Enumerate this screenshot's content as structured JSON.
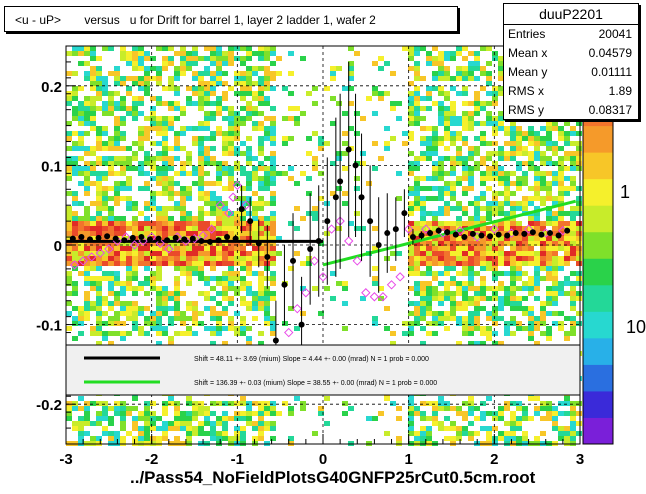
{
  "header": {
    "title": "<u - uP>       versus   u for Drift for barrel 1, layer 2 ladder 1, wafer 2"
  },
  "stats": {
    "name": "duuP2201",
    "rows": [
      {
        "label": "Entries",
        "value": "20041"
      },
      {
        "label": "Mean x",
        "value": "0.04579"
      },
      {
        "label": "Mean y",
        "value": "0.01111"
      },
      {
        "label": "RMS x",
        "value": "1.89"
      },
      {
        "label": "RMS y",
        "value": "0.08317"
      }
    ]
  },
  "footer": {
    "file": "../Pass54_NoFieldPlotsG40GNFP25rCut0.5cm.root"
  },
  "colorbar": {
    "labels": [
      "1",
      "10"
    ],
    "colors": [
      "#7a1fd9",
      "#3a2ad9",
      "#2a6fe0",
      "#28b0e8",
      "#27d8d0",
      "#23d898",
      "#2ad24a",
      "#7fe02a",
      "#c8ec2a",
      "#f5f02c",
      "#f7c628",
      "#f59a2a",
      "#f2742c",
      "#ea4a2a",
      "#e02a26"
    ]
  },
  "legend": {
    "entries": [
      {
        "color": "#000000",
        "text": "Shift =    48.11 +- 3.69 (mium) Slope =    4.44 +- 0.00 (mrad)  N = 1 prob = 0.000"
      },
      {
        "color": "#22dd22",
        "text": "Shift =   136.39 +- 0.03 (mium) Slope =    38.55 +- 0.00 (mrad)  N = 1 prob = 0.000"
      }
    ]
  },
  "chart_data": {
    "type": "heatmap",
    "title": "<u - uP>       versus   u for Drift for barrel 1, layer 2 ladder 1, wafer 2",
    "xlabel": "../Pass54_NoFieldPlotsG40GNFP25rCut0.5cm.root",
    "ylabel": "",
    "xlim": [
      -3,
      3
    ],
    "ylim": [
      -0.25,
      0.25
    ],
    "xticks": [
      -3,
      -2,
      -1,
      0,
      1,
      2,
      3
    ],
    "yticks": [
      -0.2,
      -0.1,
      0,
      0.1,
      0.2
    ],
    "ytick_labels": [
      "-0.2",
      "-0.1",
      "0",
      "0.1",
      "0.2"
    ],
    "grid": true,
    "series": [
      {
        "name": "profile",
        "marker": "filled-circle",
        "color": "#000000",
        "x": [
          -2.92,
          -2.82,
          -2.72,
          -2.62,
          -2.52,
          -2.42,
          -2.32,
          -2.22,
          -2.12,
          -2.02,
          -1.92,
          -1.82,
          -1.72,
          -1.62,
          -1.52,
          -1.42,
          -1.32,
          -1.22,
          -1.12,
          -1.02,
          -0.95,
          -0.85,
          -0.75,
          -0.65,
          -0.55,
          -0.45,
          -0.35,
          -0.25,
          -0.15,
          -0.05,
          0.05,
          0.15,
          0.2,
          0.3,
          0.38,
          0.45,
          0.55,
          0.65,
          0.75,
          0.85,
          0.95,
          1.05,
          1.15,
          1.25,
          1.35,
          1.45,
          1.55,
          1.65,
          1.75,
          1.85,
          1.95,
          2.05,
          2.15,
          2.25,
          2.35,
          2.45,
          2.55,
          2.65,
          2.75,
          2.85
        ],
        "y": [
          0.008,
          0.01,
          0.007,
          0.009,
          0.011,
          0.008,
          0.006,
          0.009,
          0.01,
          0.007,
          0.008,
          0.006,
          0.009,
          0.007,
          0.008,
          0.005,
          0.004,
          0.006,
          0.01,
          0.008,
          0.045,
          0.03,
          0.002,
          -0.015,
          -0.12,
          -0.05,
          -0.02,
          -0.1,
          -0.005,
          0.005,
          0.03,
          0.06,
          0.08,
          0.12,
          0.1,
          0.06,
          0.03,
          0.0,
          0.015,
          0.02,
          0.04,
          0.01,
          0.012,
          0.015,
          0.018,
          0.016,
          0.013,
          0.01,
          0.014,
          0.012,
          0.011,
          0.013,
          0.012,
          0.015,
          0.014,
          0.016,
          0.013,
          0.015,
          0.012,
          0.018
        ],
        "yerr": [
          0.003,
          0.003,
          0.003,
          0.003,
          0.003,
          0.003,
          0.003,
          0.003,
          0.003,
          0.003,
          0.003,
          0.003,
          0.003,
          0.003,
          0.003,
          0.003,
          0.003,
          0.003,
          0.004,
          0.005,
          0.03,
          0.03,
          0.03,
          0.04,
          0.05,
          0.05,
          0.06,
          0.06,
          0.07,
          0.07,
          0.08,
          0.1,
          0.11,
          0.11,
          0.09,
          0.08,
          0.07,
          0.06,
          0.05,
          0.04,
          0.03,
          0.01,
          0.005,
          0.004,
          0.004,
          0.004,
          0.003,
          0.003,
          0.003,
          0.003,
          0.003,
          0.003,
          0.003,
          0.003,
          0.003,
          0.003,
          0.003,
          0.003,
          0.003,
          0.003
        ]
      },
      {
        "name": "alt-profile",
        "marker": "open-diamond",
        "color": "#e84ae8",
        "x": [
          -2.9,
          -2.8,
          -2.7,
          -2.6,
          -2.5,
          -2.4,
          -2.3,
          -2.2,
          -2.1,
          -2.0,
          -1.9,
          -1.8,
          -1.7,
          -1.6,
          -1.5,
          -1.4,
          -1.3,
          -1.2,
          -1.1,
          -1.05,
          -1.0,
          -0.9,
          -0.4,
          -0.3,
          -0.2,
          -0.1,
          0.0,
          0.1,
          0.2,
          0.3,
          0.4,
          0.5,
          0.6,
          0.7,
          0.8,
          0.9,
          1.0,
          1.2,
          1.4,
          1.6,
          1.8,
          2.0,
          2.2,
          2.4,
          2.6,
          2.8
        ],
        "y": [
          -0.025,
          -0.02,
          -0.015,
          -0.01,
          -0.005,
          0.005,
          0.01,
          0.0,
          0.005,
          0.01,
          0.002,
          -0.005,
          0.01,
          0.005,
          0.008,
          0.012,
          0.02,
          0.05,
          0.04,
          0.06,
          0.075,
          0.05,
          -0.11,
          -0.08,
          -0.06,
          -0.02,
          -0.04,
          0.02,
          0.03,
          0.005,
          -0.02,
          -0.06,
          -0.065,
          -0.065,
          -0.05,
          -0.04,
          0.02,
          0.02,
          0.015,
          0.018,
          0.01,
          0.02,
          0.015,
          0.02,
          0.015,
          0.018
        ]
      },
      {
        "name": "fit-1",
        "type": "line",
        "color": "#000000",
        "x": [
          -3,
          0
        ],
        "y": [
          0.0045,
          0.0045
        ]
      },
      {
        "name": "fit-2",
        "type": "line",
        "color": "#22dd22",
        "x": [
          0,
          2.95
        ],
        "y": [
          -0.025,
          0.055
        ]
      }
    ]
  }
}
